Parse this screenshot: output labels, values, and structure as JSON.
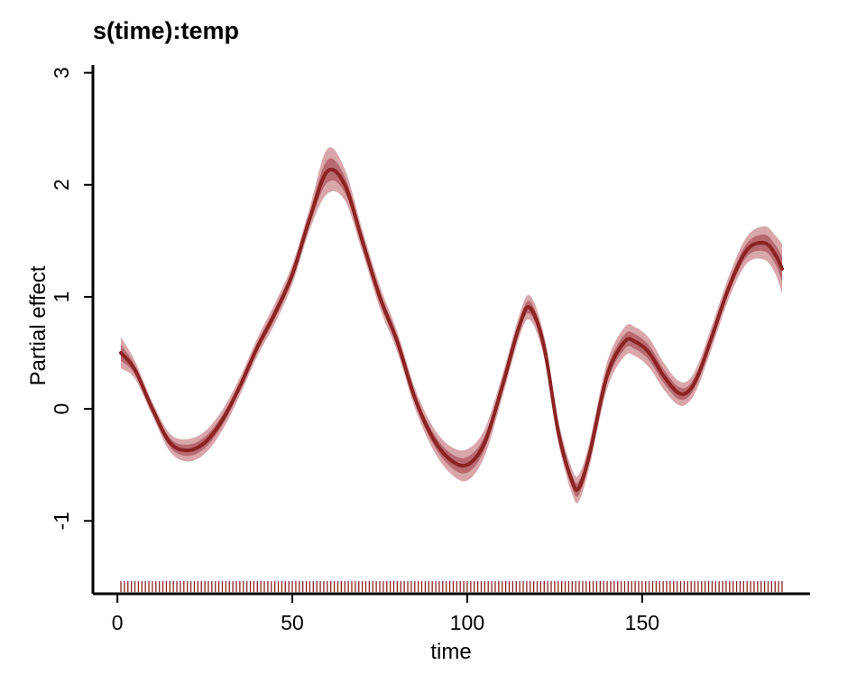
{
  "chart_data": {
    "type": "line",
    "title": "s(time):temp",
    "xlabel": "time",
    "ylabel": "Partial effect",
    "xlim": [
      -7,
      198
    ],
    "ylim": [
      -1.65,
      3.15
    ],
    "x_ticks": [
      0,
      50,
      100,
      150
    ],
    "y_ticks": [
      -1,
      0,
      1,
      2,
      3
    ],
    "x_tick_labels": [
      "0",
      "50",
      "100",
      "150"
    ],
    "y_tick_labels": [
      "-1",
      "0",
      "1",
      "2",
      "3"
    ],
    "grid": false,
    "series": [
      {
        "x": [
          1,
          5,
          10,
          15,
          20,
          25,
          30,
          35,
          40,
          45,
          50,
          55,
          60,
          65,
          70,
          75,
          80,
          85,
          90,
          95,
          100,
          105,
          110,
          115,
          118,
          122,
          126,
          130,
          132,
          135,
          140,
          145,
          148,
          152,
          156,
          160,
          163,
          166,
          170,
          175,
          180,
          185,
          188,
          190
        ],
        "y": [
          0.5,
          0.35,
          0.0,
          -0.3,
          -0.37,
          -0.3,
          -0.1,
          0.2,
          0.55,
          0.85,
          1.2,
          1.7,
          2.12,
          2.0,
          1.5,
          1.0,
          0.6,
          0.1,
          -0.25,
          -0.45,
          -0.5,
          -0.3,
          0.2,
          0.75,
          0.9,
          0.55,
          -0.2,
          -0.65,
          -0.7,
          -0.4,
          0.3,
          0.6,
          0.6,
          0.5,
          0.3,
          0.15,
          0.15,
          0.3,
          0.65,
          1.1,
          1.42,
          1.48,
          1.38,
          1.25
        ],
        "band_outer": [
          0.14,
          0.08,
          0.06,
          0.08,
          0.1,
          0.1,
          0.09,
          0.08,
          0.08,
          0.09,
          0.09,
          0.1,
          0.2,
          0.14,
          0.1,
          0.1,
          0.09,
          0.09,
          0.1,
          0.12,
          0.14,
          0.12,
          0.1,
          0.1,
          0.11,
          0.1,
          0.1,
          0.11,
          0.12,
          0.11,
          0.12,
          0.13,
          0.13,
          0.13,
          0.12,
          0.11,
          0.1,
          0.1,
          0.1,
          0.1,
          0.12,
          0.15,
          0.17,
          0.22
        ],
        "band_inner": [
          0.07,
          0.04,
          0.03,
          0.04,
          0.05,
          0.05,
          0.045,
          0.04,
          0.04,
          0.045,
          0.045,
          0.05,
          0.1,
          0.07,
          0.05,
          0.05,
          0.045,
          0.045,
          0.05,
          0.06,
          0.07,
          0.06,
          0.05,
          0.05,
          0.055,
          0.05,
          0.05,
          0.055,
          0.06,
          0.055,
          0.06,
          0.065,
          0.065,
          0.065,
          0.06,
          0.055,
          0.05,
          0.05,
          0.05,
          0.05,
          0.06,
          0.075,
          0.085,
          0.11
        ]
      }
    ],
    "rug": {
      "from": 1,
      "to": 190,
      "step": 1
    },
    "colors": {
      "line": "#8b2323",
      "band_outer": "#d9a6aa",
      "band_inner": "#b86a70",
      "rug": "#8b2323",
      "axis": "#000000"
    }
  }
}
